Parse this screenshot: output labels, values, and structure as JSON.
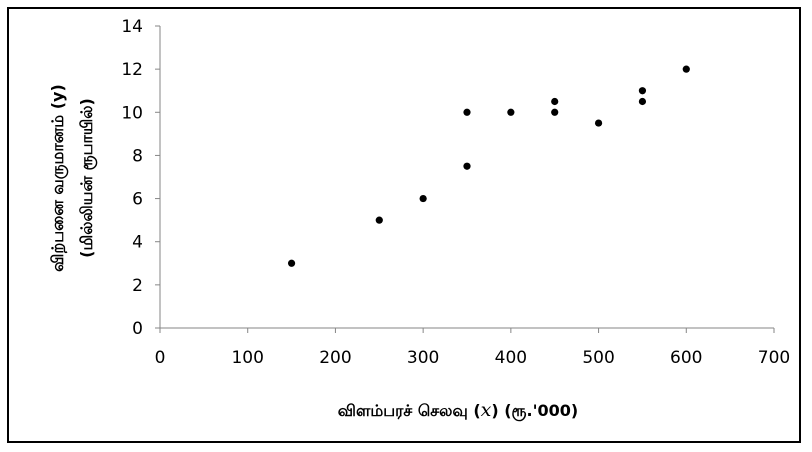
{
  "chart_data": {
    "type": "scatter",
    "title": "",
    "xlabel": {
      "prefix": "விளம்பரச்  செலவு (",
      "variable": "x",
      "suffix": ") (ரூ.'000)"
    },
    "ylabel": {
      "line1": "விற்பனை வருமானம் (y)",
      "line2": "(மில்லியன் ரூபாயில்)"
    },
    "xlim": [
      0,
      700
    ],
    "ylim": [
      0,
      14
    ],
    "xticks": [
      0,
      100,
      200,
      300,
      400,
      500,
      600,
      700
    ],
    "yticks": [
      0,
      2,
      4,
      6,
      8,
      10,
      12,
      14
    ],
    "grid": false,
    "legend": "none",
    "marker_color": "#000000",
    "points": [
      {
        "x": 150,
        "y": 3
      },
      {
        "x": 250,
        "y": 5
      },
      {
        "x": 300,
        "y": 6
      },
      {
        "x": 350,
        "y": 7.5
      },
      {
        "x": 350,
        "y": 10
      },
      {
        "x": 400,
        "y": 10
      },
      {
        "x": 450,
        "y": 10
      },
      {
        "x": 450,
        "y": 10.5
      },
      {
        "x": 500,
        "y": 9.5
      },
      {
        "x": 550,
        "y": 10.5
      },
      {
        "x": 550,
        "y": 11
      },
      {
        "x": 600,
        "y": 12
      }
    ]
  }
}
